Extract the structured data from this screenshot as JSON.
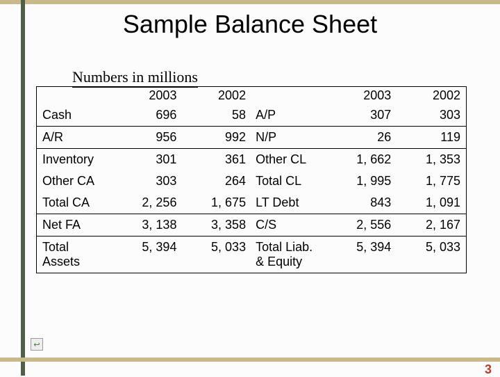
{
  "title": "Sample Balance Sheet",
  "subhead": "Numbers in millions",
  "page_number": "3",
  "colors": {
    "top_bar": "#c9b98a",
    "bottom_bar": "#c9b98a",
    "left_bar": "#506048",
    "page_number": "#c0392b",
    "title_text": "#000000",
    "border": "#000000",
    "background": "#fcfcfc"
  },
  "table": {
    "font_size_pt": 14,
    "headers": {
      "left_year_a": "2003",
      "left_year_b": "2002",
      "right_year_a": "2003",
      "right_year_b": "2002"
    },
    "rows": [
      {
        "left_label": "Cash",
        "left_a": "696",
        "left_b": "58",
        "right_label": "A/P",
        "right_a": "307",
        "right_b": "303",
        "rule": false
      },
      {
        "left_label": "A/R",
        "left_a": "956",
        "left_b": "992",
        "right_label": "N/P",
        "right_a": "26",
        "right_b": "119",
        "rule": true
      },
      {
        "left_label": "Inventory",
        "left_a": "301",
        "left_b": "361",
        "right_label": "Other CL",
        "right_a": "1, 662",
        "right_b": "1, 353",
        "rule": true
      },
      {
        "left_label": "Other CA",
        "left_a": "303",
        "left_b": "264",
        "right_label": "Total CL",
        "right_a": "1, 995",
        "right_b": "1, 775",
        "rule": false
      },
      {
        "left_label": "Total CA",
        "left_a": "2, 256",
        "left_b": "1, 675",
        "right_label": "LT Debt",
        "right_a": "843",
        "right_b": "1, 091",
        "rule": false
      },
      {
        "left_label": "Net FA",
        "left_a": "3, 138",
        "left_b": "3, 358",
        "right_label": "C/S",
        "right_a": "2, 556",
        "right_b": "2, 167",
        "rule": true
      },
      {
        "left_label": "Total Assets",
        "left_a": "5, 394",
        "left_b": "5, 033",
        "right_label": "Total Liab. & Equity",
        "right_a": "5, 394",
        "right_b": "5, 033",
        "rule": true
      }
    ]
  },
  "icon": {
    "name": "return-icon",
    "glyph": "↩"
  }
}
